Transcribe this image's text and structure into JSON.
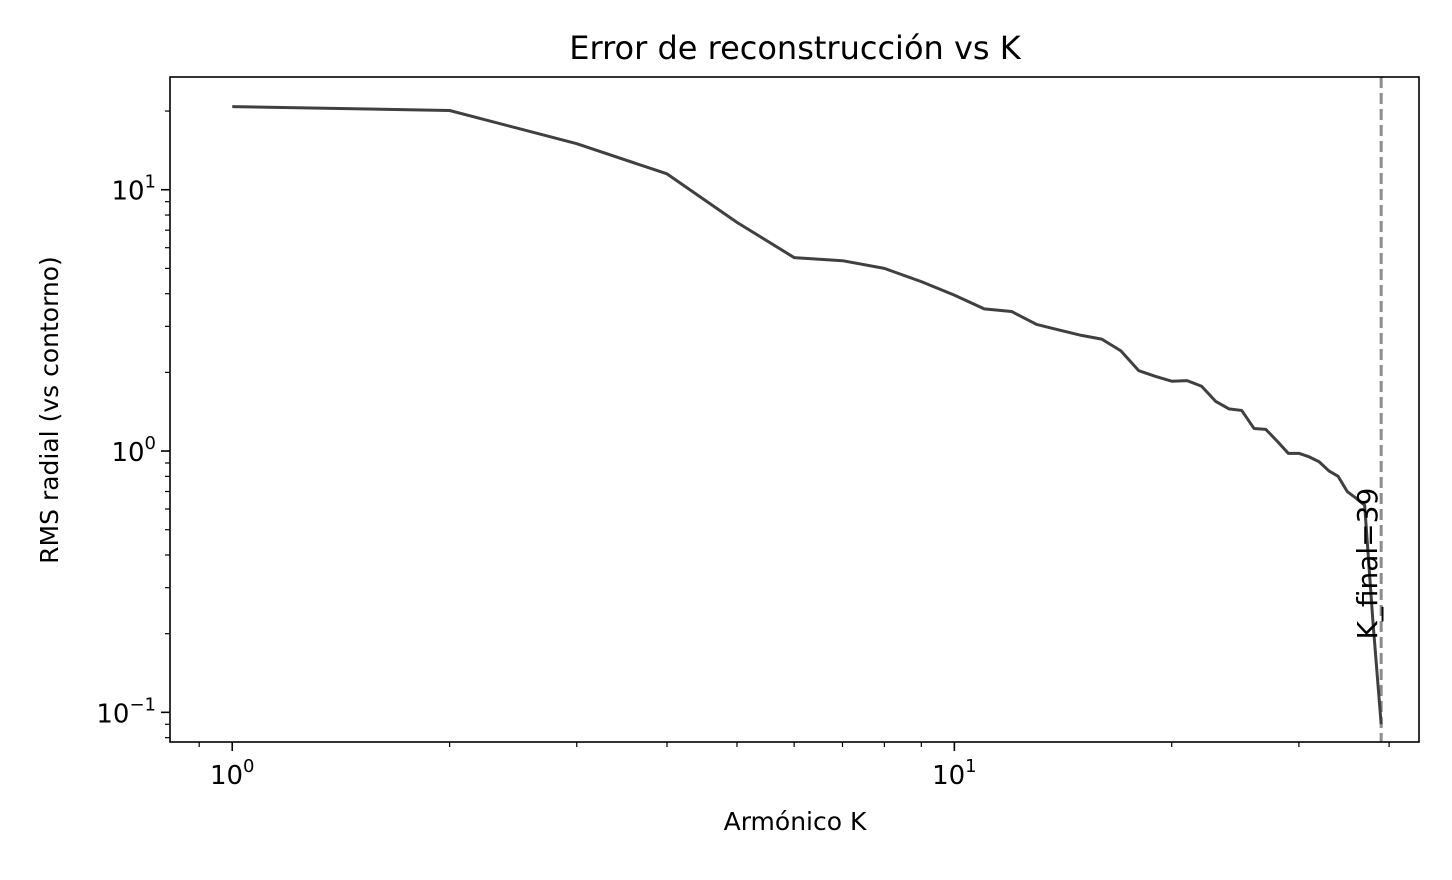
{
  "chart_data": {
    "type": "line",
    "title": "Error de reconstrucción vs K",
    "xlabel": "Armónico K",
    "ylabel": "RMS radial (vs contorno)",
    "xscale": "log",
    "yscale": "log",
    "xlim": [
      0.82,
      44
    ],
    "ylim": [
      0.077,
      27
    ],
    "xticks": [
      {
        "value": 1,
        "base": "10",
        "exp": "0"
      },
      {
        "value": 10,
        "base": "10",
        "exp": "1"
      }
    ],
    "yticks": [
      {
        "value": 0.1,
        "base": "10",
        "exp": "−1"
      },
      {
        "value": 1,
        "base": "10",
        "exp": "0"
      },
      {
        "value": 10,
        "base": "10",
        "exp": "1"
      }
    ],
    "grid": false,
    "series": [
      {
        "color": "#404040",
        "x": [
          1,
          2,
          3,
          4,
          5,
          6,
          7,
          8,
          9,
          10,
          11,
          12,
          13,
          14,
          15,
          16,
          17,
          18,
          19,
          20,
          21,
          22,
          23,
          24,
          25,
          26,
          27,
          28,
          29,
          30,
          31,
          32,
          33,
          34,
          35,
          36,
          37,
          38,
          39
        ],
        "y": [
          20.8,
          20.1,
          15.0,
          11.5,
          7.5,
          5.5,
          5.35,
          5.0,
          4.45,
          3.95,
          3.5,
          3.42,
          3.05,
          2.9,
          2.77,
          2.68,
          2.42,
          2.03,
          1.93,
          1.85,
          1.86,
          1.77,
          1.55,
          1.45,
          1.43,
          1.22,
          1.21,
          1.09,
          0.98,
          0.98,
          0.95,
          0.91,
          0.84,
          0.8,
          0.7,
          0.66,
          0.62,
          0.22,
          0.09
        ]
      }
    ],
    "vline": {
      "x": 39,
      "color": "#8c8c8c",
      "style": "dashed",
      "label": "K_final=39"
    }
  }
}
